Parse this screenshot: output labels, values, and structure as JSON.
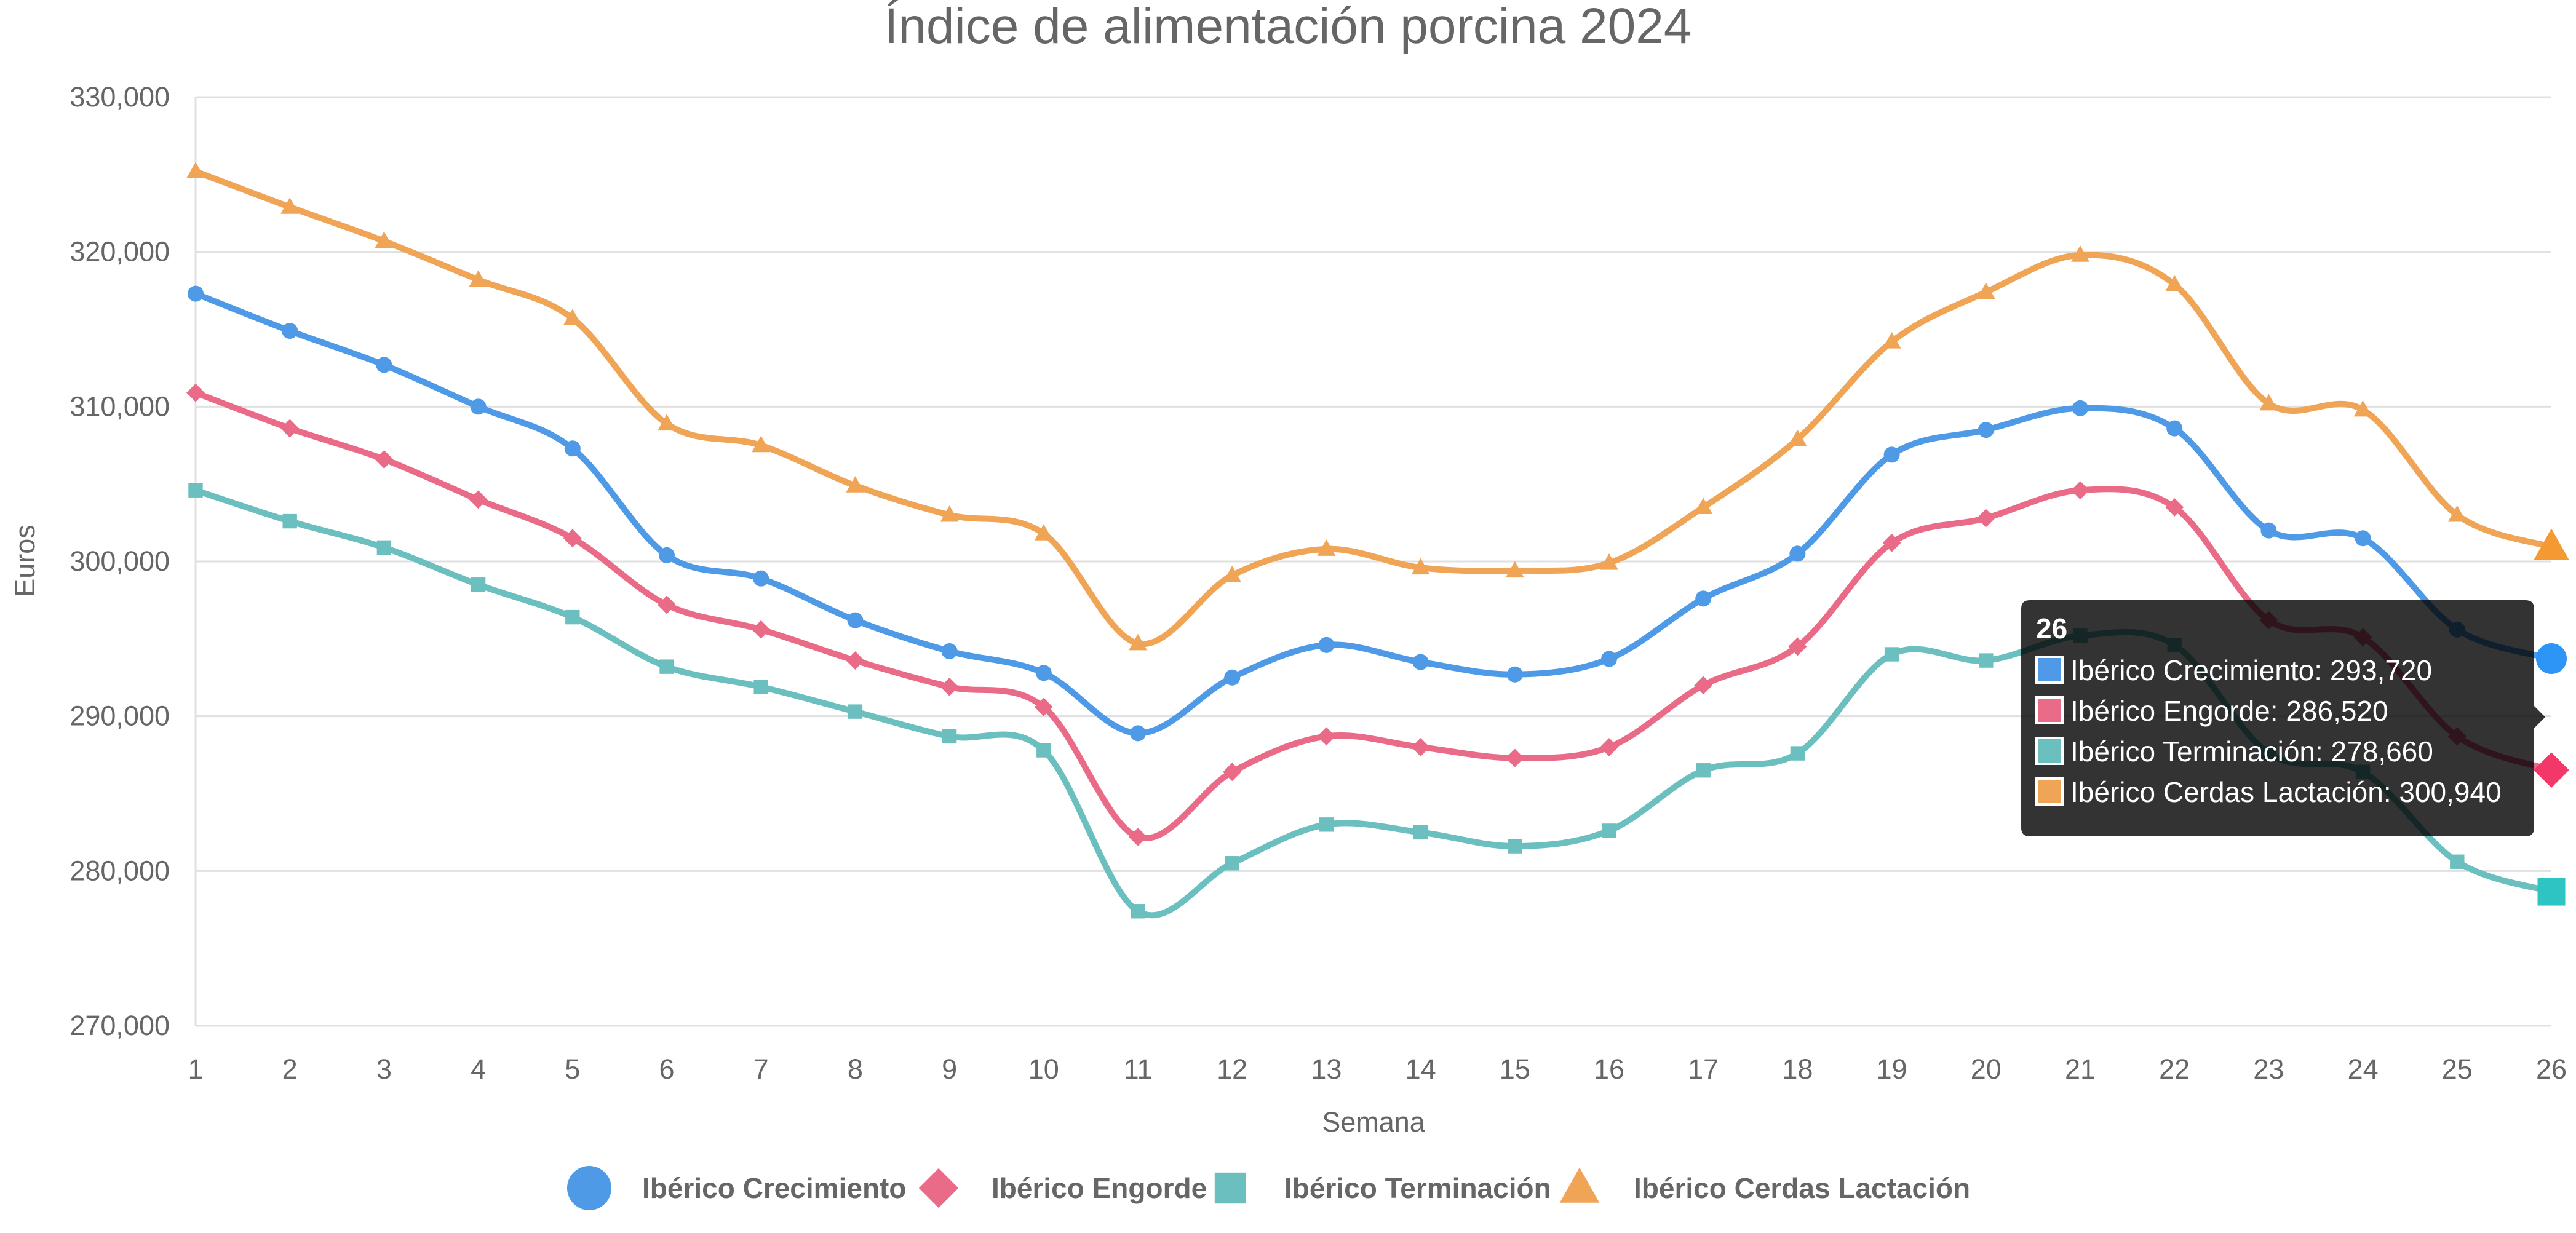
{
  "chart_data": {
    "type": "line",
    "title": "Índice de alimentación porcina 2024",
    "xlabel": "Semana",
    "ylabel": "Euros",
    "x": [
      "1",
      "2",
      "3",
      "4",
      "5",
      "6",
      "7",
      "8",
      "9",
      "10",
      "11",
      "12",
      "13",
      "14",
      "15",
      "16",
      "17",
      "18",
      "19",
      "20",
      "21",
      "22",
      "23",
      "24",
      "25",
      "26"
    ],
    "ylim": [
      270000,
      330000
    ],
    "yticks": [
      "270,000",
      "280,000",
      "290,000",
      "300,000",
      "310,000",
      "320,000",
      "330,000"
    ],
    "grid": true,
    "legend": "bottom",
    "series": [
      {
        "name": "Ibérico Crecimiento",
        "color": "#4e9ae6",
        "marker": "circle",
        "values": [
          317300,
          314900,
          312700,
          310000,
          307300,
          300400,
          298900,
          296200,
          294200,
          292800,
          288900,
          292500,
          294600,
          293500,
          292700,
          293700,
          297600,
          300500,
          306900,
          308500,
          309900,
          308600,
          302000,
          301500,
          295600,
          293720
        ]
      },
      {
        "name": "Ibérico Engorde",
        "color": "#e96b87",
        "marker": "diamond",
        "values": [
          310900,
          308600,
          306600,
          304000,
          301500,
          297200,
          295600,
          293600,
          291900,
          290600,
          282200,
          286400,
          288700,
          288000,
          287300,
          288000,
          292000,
          294500,
          301200,
          302800,
          304600,
          303500,
          296200,
          295100,
          288700,
          286520
        ]
      },
      {
        "name": "Ibérico Terminación",
        "color": "#6bbfbf",
        "marker": "square",
        "values": [
          304600,
          302600,
          300900,
          298500,
          296400,
          293200,
          291900,
          290300,
          288700,
          287800,
          277400,
          280500,
          283000,
          282500,
          281600,
          282600,
          286500,
          287600,
          294000,
          293600,
          295200,
          294600,
          287600,
          286400,
          280600,
          278660
        ]
      },
      {
        "name": "Ibérico Cerdas Lactación",
        "color": "#f0a456",
        "marker": "triangle",
        "values": [
          325200,
          322900,
          320700,
          318200,
          315700,
          308900,
          307500,
          304900,
          303000,
          301800,
          294700,
          299100,
          300800,
          299600,
          299400,
          299900,
          303500,
          307900,
          314200,
          317400,
          319800,
          317900,
          310200,
          309800,
          303000,
          300940
        ]
      }
    ],
    "tooltip": {
      "title": "26",
      "lines": [
        "Ibérico Crecimiento: 293,720",
        "Ibérico Engorde: 286,520",
        "Ibérico Terminación: 278,660",
        "Ibérico Cerdas Lactación: 300,940"
      ],
      "swatch_fills": [
        "#4e9ae6",
        "#e96b87",
        "#6bbfbf",
        "#f0a456"
      ]
    },
    "hover_colors": [
      "#2d95f5",
      "#f23868",
      "#2ec4c4",
      "#f59a32"
    ]
  }
}
